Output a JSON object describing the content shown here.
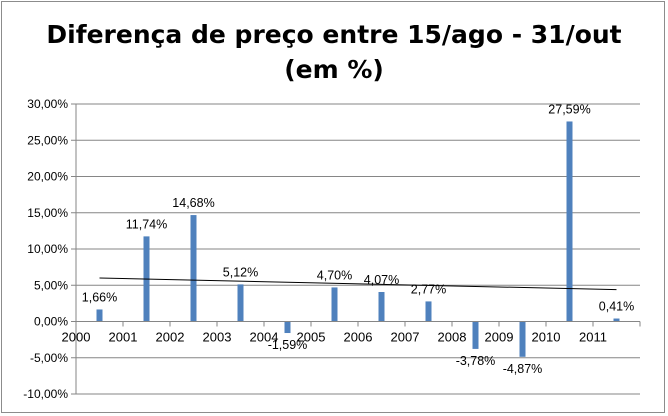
{
  "chart_data": {
    "type": "bar",
    "title_line1": "Diferença de preço entre 15/ago - 31/out",
    "title_line2": "(em %)",
    "categories": [
      "2000",
      "2001",
      "2002",
      "2003",
      "2004",
      "2005",
      "2006",
      "2007",
      "2008",
      "2009",
      "2010",
      "2011"
    ],
    "values": [
      1.66,
      11.74,
      14.68,
      5.12,
      -1.59,
      4.7,
      4.07,
      2.77,
      -3.78,
      -4.87,
      27.59,
      0.41
    ],
    "data_labels": [
      "1,66%",
      "11,74%",
      "14,68%",
      "5,12%",
      "-1,59%",
      "4,70%",
      "4,07%",
      "2,77%",
      "-3,78%",
      "-4,87%",
      "27,59%",
      "0,41%"
    ],
    "y_ticks": [
      "-10,00%",
      "-5,00%",
      "0,00%",
      "5,00%",
      "10,00%",
      "15,00%",
      "20,00%",
      "25,00%",
      "30,00%"
    ],
    "ylim": [
      -10,
      30
    ],
    "trendline": {
      "type": "linear",
      "start": 6.0,
      "end": 4.4
    },
    "colors": {
      "bar": "#4f81bd",
      "trendline": "#000000",
      "gridline": "#868686"
    },
    "grid": true,
    "legend": "none"
  }
}
